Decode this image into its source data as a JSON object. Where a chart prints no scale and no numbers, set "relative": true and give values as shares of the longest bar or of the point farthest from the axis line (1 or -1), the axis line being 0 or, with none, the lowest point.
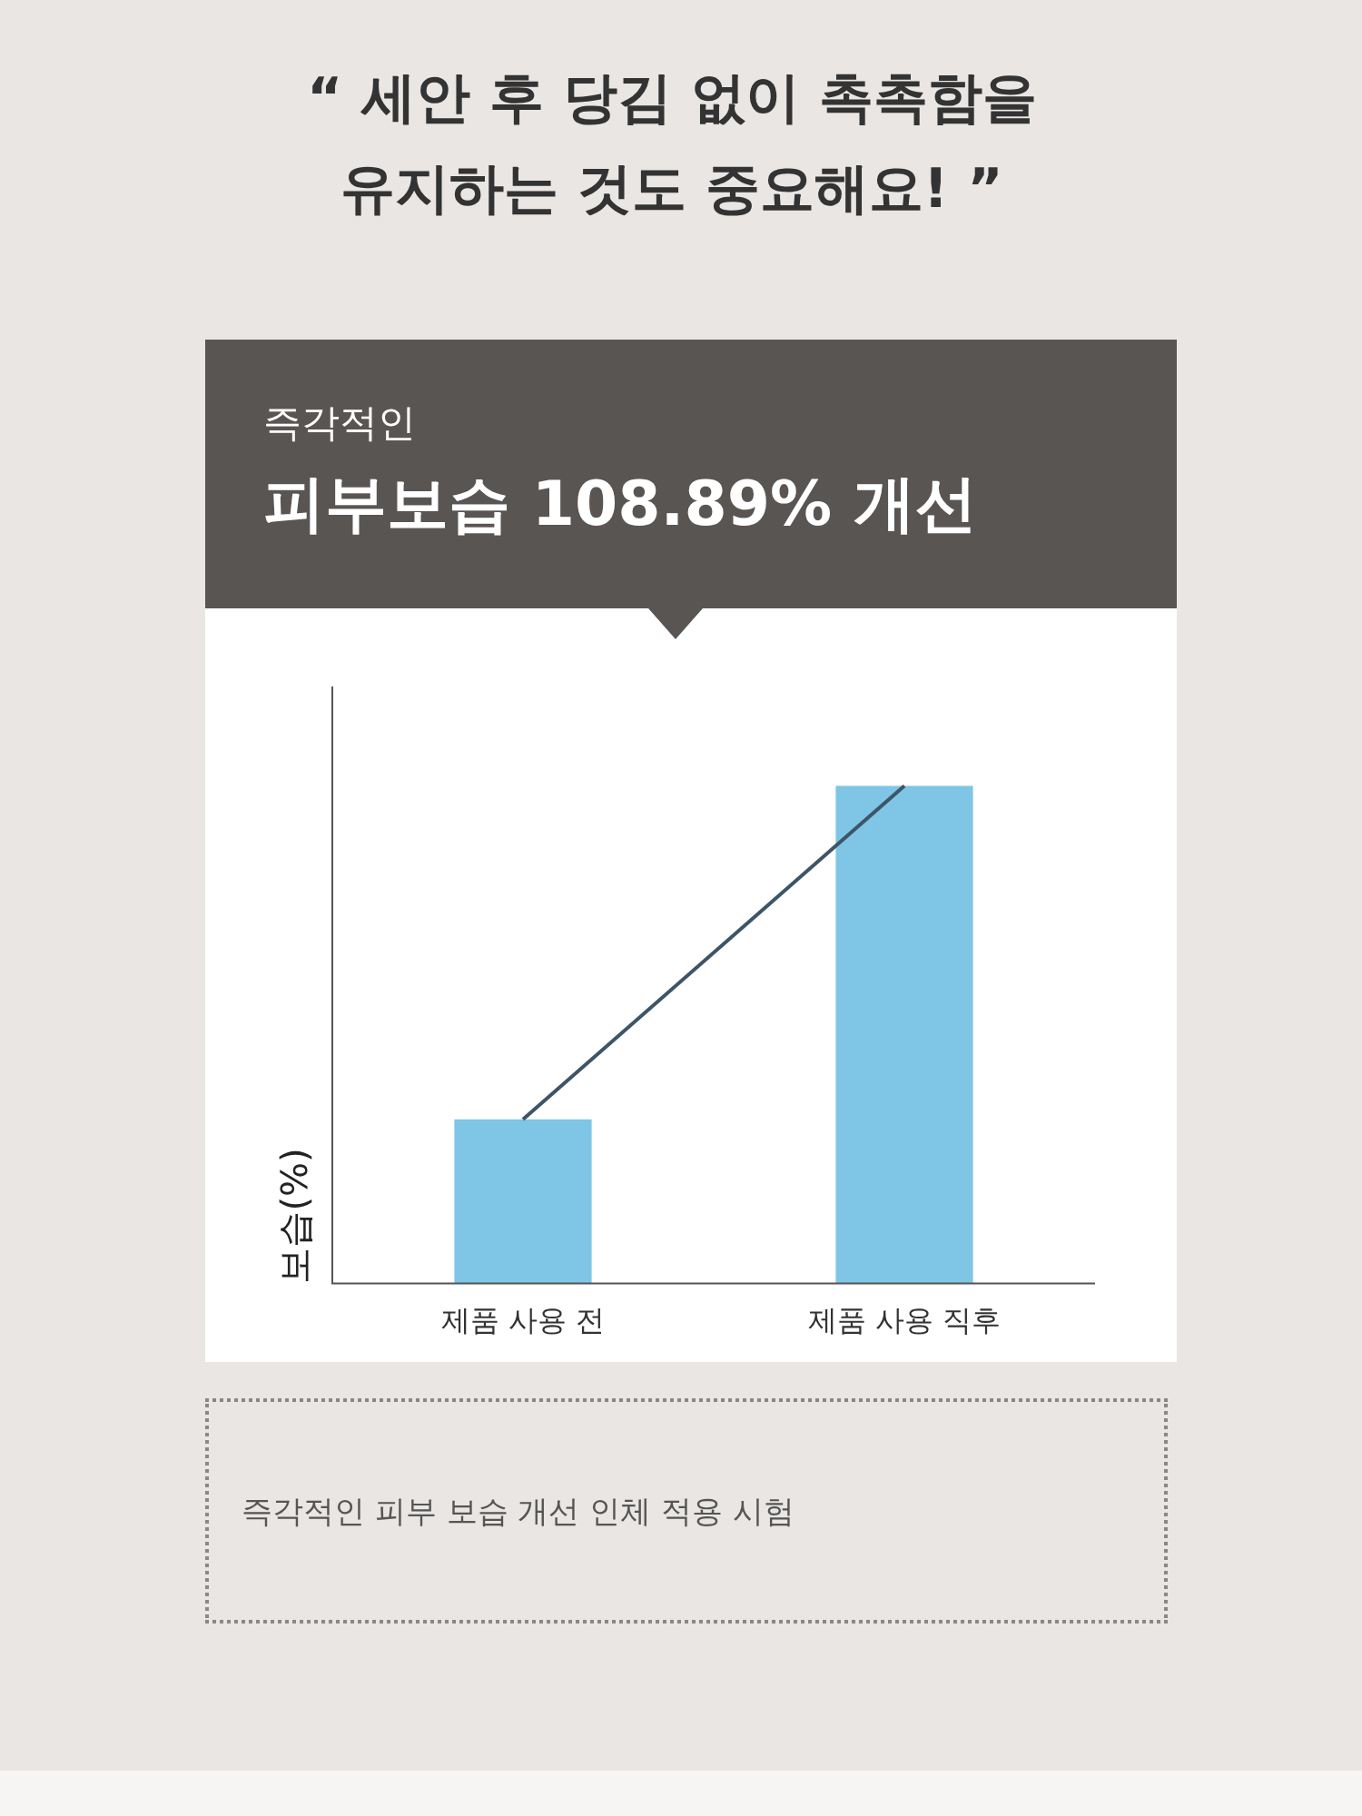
{
  "chart_data": {
    "type": "bar",
    "title": "“ 세안 후 당김 없이 촉촉함을\n유지하는 것도 중요해요! ”",
    "subtitle": "즉각적인",
    "annotations": [
      "피부보습 108.89% 개선",
      "즉각적인 피부 보습 개선 인체 적용 시험"
    ],
    "ylabel": "보습(%)",
    "relative": true,
    "categories": [
      "제품 사용 전",
      "제품 사용 직후"
    ],
    "series": [
      {
        "color": "#7fc5e6",
        "values": [
          0.33,
          1
        ]
      },
      {
        "type": "line",
        "color": "#3d5566",
        "values": [
          0.33,
          1
        ]
      }
    ],
    "legend": false,
    "grid": false
  }
}
